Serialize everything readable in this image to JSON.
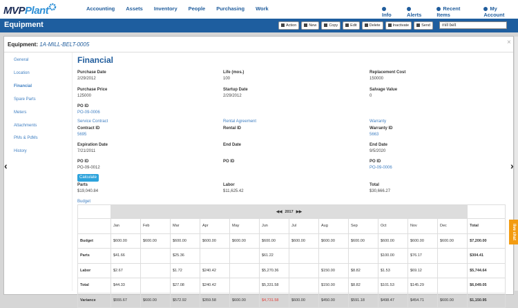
{
  "nav": {
    "logo": {
      "mvp": "MVP",
      "plant": "Plant"
    },
    "menu": [
      "Accounting",
      "Assets",
      "Inventory",
      "People",
      "Purchasing",
      "Work"
    ],
    "user_menu": [
      "Info",
      "Alerts",
      "Recent Items",
      "My Account"
    ]
  },
  "toolbar": {
    "title": "Equipment",
    "buttons": [
      "Action",
      "New",
      "Copy",
      "Edit",
      "Delete",
      "Inactivate",
      "Send"
    ],
    "search": "mill belt"
  },
  "record": {
    "label": "Equipment:",
    "id": "1A-MILL-BELT-0005"
  },
  "tabs": [
    "General",
    "Location",
    "Financial",
    "Spare Parts",
    "Meters",
    "Attachments",
    "PMs & PdMs",
    "History"
  ],
  "financial": {
    "heading": "Financial",
    "fields": [
      [
        {
          "label": "Purchase Date",
          "value": "2/29/2012"
        },
        {
          "label": "Life (mos.)",
          "value": "100"
        },
        {
          "label": "Replacement Cost",
          "value": "150000"
        }
      ],
      [
        {
          "label": "Purchase Price",
          "value": "125000"
        },
        {
          "label": "Startup Date",
          "value": "2/29/2012"
        },
        {
          "label": "Salvage Value",
          "value": "0"
        }
      ],
      [
        {
          "label": "PO ID",
          "value": "PO-09-0006"
        }
      ]
    ],
    "sections": [
      "Service Contract",
      "Rental Agreement",
      "Warranty"
    ],
    "contract_fields": [
      [
        {
          "label": "Contract ID",
          "value": "5695"
        },
        {
          "label": "Rental ID"
        },
        {
          "label": "Warranty ID",
          "value": "5663"
        }
      ],
      [
        {
          "label": "Expiration Date",
          "value": "7/21/2011"
        },
        {
          "label": "End Date"
        },
        {
          "label": "End Date",
          "value": "9/5/2020"
        }
      ],
      [
        {
          "label": "PO ID",
          "value": "PO-09-0012"
        },
        {
          "label": "PO ID"
        },
        {
          "label": "PO ID",
          "value": "PO-09-0006"
        }
      ]
    ],
    "calculate": "Calculate",
    "totals": [
      {
        "label": "Parts",
        "value": "$19,040.84"
      },
      {
        "label": "Labor",
        "value": "$11,625.42"
      },
      {
        "label": "Total",
        "value": "$30,666.27"
      }
    ]
  },
  "budget": {
    "title": "Budget",
    "year": "2017",
    "columns": [
      "Jan",
      "Feb",
      "Mar",
      "Apr",
      "May",
      "Jun",
      "Jul",
      "Aug",
      "Sep",
      "Oct",
      "Nov",
      "Dec",
      "Total"
    ],
    "rows": [
      {
        "label": "Budget",
        "cells": [
          "$600.00",
          "$600.00",
          "$600.00",
          "$600.00",
          "$600.00",
          "$600.00",
          "$600.00",
          "$600.00",
          "$600.00",
          "$600.00",
          "$600.00",
          "$600.00",
          "$7,200.00"
        ]
      },
      {
        "label": "Parts",
        "cells": [
          "$41.66",
          null,
          "$25.36",
          null,
          null,
          "$61.22",
          null,
          null,
          null,
          "$100.00",
          "$76.17",
          null,
          "$304.41"
        ]
      },
      {
        "label": "Labor",
        "cells": [
          "$2.67",
          null,
          "$1.72",
          "$240.42",
          null,
          "$5,270.36",
          null,
          "$150.00",
          "$8.82",
          "$1.53",
          "$69.12",
          null,
          "$5,744.64"
        ]
      },
      {
        "label": "Total",
        "cells": [
          "$44.33",
          null,
          "$27.08",
          "$240.42",
          null,
          "$5,331.58",
          null,
          "$150.00",
          "$8.82",
          "$101.53",
          "$145.29",
          null,
          "$6,049.05"
        ]
      },
      {
        "label": "Variance",
        "cells": [
          "$555.67",
          "$600.00",
          "$572.92",
          "$359.58",
          "$600.00",
          "$4,731.58",
          "$600.00",
          "$450.00",
          "$591.18",
          "$498.47",
          "$454.71",
          "$600.00",
          "$1,150.95"
        ]
      }
    ]
  },
  "live_chat": "live chat"
}
